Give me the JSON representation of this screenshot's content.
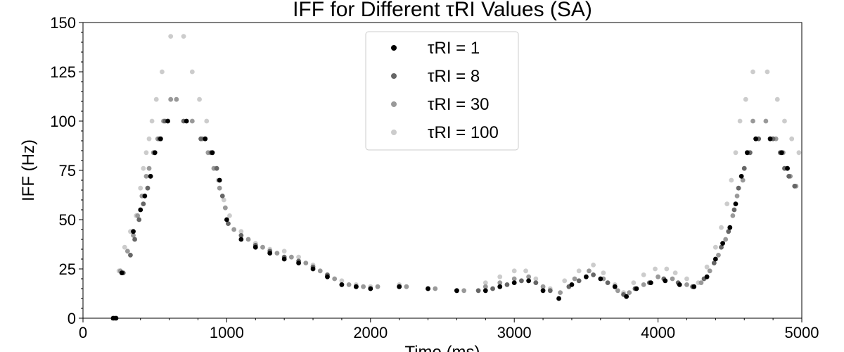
{
  "chart_data": {
    "type": "scatter",
    "title": "IFF for Different τRI Values (SA)",
    "xlabel": "Time (ms)",
    "ylabel": "IFF (Hz)",
    "xlim": [
      0,
      5000
    ],
    "ylim": [
      0,
      150
    ],
    "xticks": [
      "0",
      "1000",
      "2000",
      "3000",
      "4000",
      "5000"
    ],
    "yticks": [
      "0",
      "25",
      "50",
      "75",
      "100",
      "125",
      "150"
    ],
    "grid": false,
    "legend_position": "top-center",
    "series": [
      {
        "name": "τRI = 1",
        "color": "#000000",
        "points": [
          [
            210,
            0
          ],
          [
            230,
            0
          ],
          [
            270,
            23
          ],
          [
            350,
            44
          ],
          [
            400,
            55
          ],
          [
            430,
            62
          ],
          [
            470,
            72
          ],
          [
            500,
            84
          ],
          [
            540,
            91
          ],
          [
            590,
            100
          ],
          [
            720,
            100
          ],
          [
            850,
            91
          ],
          [
            900,
            84
          ],
          [
            950,
            70
          ],
          [
            1000,
            50
          ],
          [
            1100,
            40
          ],
          [
            1200,
            36
          ],
          [
            1300,
            33
          ],
          [
            1400,
            30
          ],
          [
            1500,
            28
          ],
          [
            1600,
            25
          ],
          [
            1700,
            21
          ],
          [
            1800,
            17
          ],
          [
            1900,
            16
          ],
          [
            2000,
            15
          ],
          [
            2200,
            16
          ],
          [
            2400,
            15
          ],
          [
            2600,
            14
          ],
          [
            2800,
            14
          ],
          [
            2900,
            16
          ],
          [
            3000,
            18
          ],
          [
            3100,
            19
          ],
          [
            3200,
            14
          ],
          [
            3310,
            10
          ],
          [
            3400,
            17
          ],
          [
            3500,
            21
          ],
          [
            3600,
            20
          ],
          [
            3700,
            16
          ],
          [
            3780,
            11
          ],
          [
            3850,
            15
          ],
          [
            3950,
            18
          ],
          [
            4050,
            19
          ],
          [
            4150,
            17
          ],
          [
            4250,
            16
          ],
          [
            4340,
            21
          ],
          [
            4400,
            30
          ],
          [
            4450,
            38
          ],
          [
            4500,
            46
          ],
          [
            4540,
            58
          ],
          [
            4580,
            72
          ],
          [
            4620,
            84
          ],
          [
            4680,
            91
          ],
          [
            4780,
            91
          ],
          [
            4860,
            84
          ],
          [
            4900,
            76
          ]
        ]
      },
      {
        "name": "τRI = 8",
        "color": "#666666",
        "points": [
          [
            220,
            0
          ],
          [
            280,
            23
          ],
          [
            330,
            32
          ],
          [
            360,
            40
          ],
          [
            390,
            50
          ],
          [
            420,
            58
          ],
          [
            450,
            66
          ],
          [
            470,
            72
          ],
          [
            500,
            84
          ],
          [
            530,
            91
          ],
          [
            570,
            100
          ],
          [
            700,
            100
          ],
          [
            820,
            91
          ],
          [
            890,
            84
          ],
          [
            930,
            76
          ],
          [
            970,
            62
          ],
          [
            1010,
            48
          ],
          [
            1100,
            42
          ],
          [
            1200,
            37
          ],
          [
            1300,
            34
          ],
          [
            1400,
            31
          ],
          [
            1500,
            29
          ],
          [
            1600,
            26
          ],
          [
            1700,
            22
          ],
          [
            1800,
            17
          ],
          [
            1900,
            16
          ],
          [
            2000,
            15
          ],
          [
            2200,
            16
          ],
          [
            2400,
            15
          ],
          [
            2600,
            14
          ],
          [
            2750,
            14
          ],
          [
            2850,
            15
          ],
          [
            2950,
            17
          ],
          [
            3050,
            19
          ],
          [
            3150,
            18
          ],
          [
            3250,
            14
          ],
          [
            3380,
            16
          ],
          [
            3450,
            19
          ],
          [
            3550,
            22
          ],
          [
            3650,
            18
          ],
          [
            3760,
            12
          ],
          [
            3840,
            15
          ],
          [
            3940,
            18
          ],
          [
            4040,
            20
          ],
          [
            4140,
            18
          ],
          [
            4240,
            16
          ],
          [
            4320,
            20
          ],
          [
            4390,
            28
          ],
          [
            4440,
            36
          ],
          [
            4490,
            44
          ],
          [
            4530,
            55
          ],
          [
            4560,
            66
          ],
          [
            4600,
            76
          ],
          [
            4640,
            84
          ],
          [
            4700,
            91
          ],
          [
            4800,
            91
          ],
          [
            4850,
            84
          ],
          [
            4880,
            76
          ],
          [
            4910,
            72
          ],
          [
            4950,
            67
          ]
        ]
      },
      {
        "name": "τRI = 30",
        "color": "#999999",
        "points": [
          [
            260,
            24
          ],
          [
            310,
            34
          ],
          [
            350,
            42
          ],
          [
            380,
            52
          ],
          [
            410,
            62
          ],
          [
            440,
            72
          ],
          [
            460,
            76
          ],
          [
            490,
            84
          ],
          [
            520,
            91
          ],
          [
            560,
            100
          ],
          [
            610,
            111
          ],
          [
            650,
            111
          ],
          [
            760,
            100
          ],
          [
            830,
            91
          ],
          [
            870,
            84
          ],
          [
            910,
            76
          ],
          [
            950,
            66
          ],
          [
            990,
            56
          ],
          [
            1050,
            45
          ],
          [
            1150,
            40
          ],
          [
            1250,
            36
          ],
          [
            1350,
            33
          ],
          [
            1450,
            31
          ],
          [
            1550,
            28
          ],
          [
            1650,
            24
          ],
          [
            1750,
            20
          ],
          [
            1850,
            17
          ],
          [
            1950,
            16
          ],
          [
            2050,
            16
          ],
          [
            2250,
            16
          ],
          [
            2450,
            15
          ],
          [
            2650,
            14
          ],
          [
            2800,
            16
          ],
          [
            2900,
            18
          ],
          [
            3000,
            20
          ],
          [
            3100,
            21
          ],
          [
            3200,
            16
          ],
          [
            3320,
            13
          ],
          [
            3420,
            20
          ],
          [
            3520,
            24
          ],
          [
            3620,
            20
          ],
          [
            3720,
            14
          ],
          [
            3800,
            13
          ],
          [
            3900,
            17
          ],
          [
            4000,
            21
          ],
          [
            4100,
            20
          ],
          [
            4200,
            17
          ],
          [
            4300,
            18
          ],
          [
            4360,
            24
          ],
          [
            4420,
            32
          ],
          [
            4470,
            40
          ],
          [
            4520,
            52
          ],
          [
            4550,
            62
          ],
          [
            4590,
            70
          ],
          [
            4630,
            84
          ],
          [
            4660,
            100
          ],
          [
            4750,
            100
          ],
          [
            4820,
            91
          ],
          [
            4870,
            84
          ],
          [
            4920,
            72
          ],
          [
            4960,
            67
          ]
        ]
      },
      {
        "name": "τRI = 100",
        "color": "#cccccc",
        "points": [
          [
            250,
            24
          ],
          [
            290,
            36
          ],
          [
            330,
            44
          ],
          [
            370,
            52
          ],
          [
            400,
            66
          ],
          [
            420,
            76
          ],
          [
            440,
            84
          ],
          [
            460,
            91
          ],
          [
            480,
            100
          ],
          [
            510,
            111
          ],
          [
            550,
            125
          ],
          [
            610,
            143
          ],
          [
            700,
            143
          ],
          [
            760,
            125
          ],
          [
            810,
            111
          ],
          [
            860,
            100
          ],
          [
            900,
            84
          ],
          [
            940,
            70
          ],
          [
            980,
            60
          ],
          [
            1020,
            52
          ],
          [
            1100,
            44
          ],
          [
            1200,
            38
          ],
          [
            1300,
            35
          ],
          [
            1400,
            34
          ],
          [
            1500,
            31
          ],
          [
            1600,
            27
          ],
          [
            1700,
            22
          ],
          [
            1800,
            19
          ],
          [
            1900,
            17
          ],
          [
            2000,
            16
          ],
          [
            2200,
            17
          ],
          [
            2400,
            15
          ],
          [
            2600,
            14
          ],
          [
            2800,
            18
          ],
          [
            2900,
            21
          ],
          [
            3000,
            24
          ],
          [
            3080,
            24
          ],
          [
            3150,
            20
          ],
          [
            3250,
            15
          ],
          [
            3350,
            19
          ],
          [
            3450,
            24
          ],
          [
            3550,
            27
          ],
          [
            3620,
            23
          ],
          [
            3700,
            17
          ],
          [
            3760,
            13
          ],
          [
            3830,
            18
          ],
          [
            3900,
            22
          ],
          [
            3980,
            25
          ],
          [
            4060,
            25
          ],
          [
            4120,
            23
          ],
          [
            4200,
            20
          ],
          [
            4280,
            18
          ],
          [
            4340,
            26
          ],
          [
            4400,
            36
          ],
          [
            4440,
            46
          ],
          [
            4480,
            58
          ],
          [
            4510,
            70
          ],
          [
            4540,
            84
          ],
          [
            4570,
            100
          ],
          [
            4610,
            111
          ],
          [
            4660,
            125
          ],
          [
            4760,
            125
          ],
          [
            4830,
            111
          ],
          [
            4880,
            100
          ],
          [
            4930,
            91
          ],
          [
            4980,
            84
          ]
        ]
      }
    ]
  }
}
